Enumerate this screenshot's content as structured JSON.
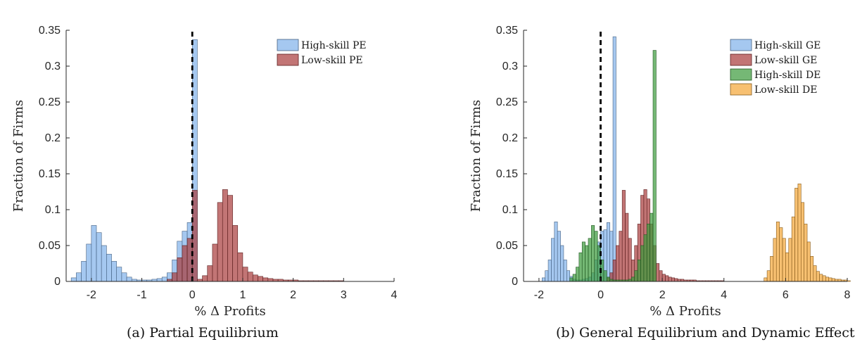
{
  "figure": {
    "captions": [
      "(a) Partial Equilibrium",
      "(b) General Equilibrium and Dynamic Effect"
    ]
  },
  "chart_data": [
    {
      "type": "bar",
      "title": "",
      "xlabel": "% Δ Profits",
      "ylabel": "Fraction of Firms",
      "xlim": [
        -2.5,
        4
      ],
      "ylim": [
        0,
        0.35
      ],
      "xticks": [
        -2,
        -1,
        0,
        1,
        2,
        3,
        4
      ],
      "yticks": [
        0,
        0.05,
        0.1,
        0.15,
        0.2,
        0.25,
        0.3,
        0.35
      ],
      "binwidth": 0.1,
      "grid": false,
      "legend_position": "top-right",
      "reference_line_x": 0,
      "series": [
        {
          "name": "High-skill PE",
          "color": "#7fb0ea",
          "bins": [
            [
              -2.4,
              0.005
            ],
            [
              -2.3,
              0.012
            ],
            [
              -2.2,
              0.028
            ],
            [
              -2.1,
              0.052
            ],
            [
              -2.0,
              0.078
            ],
            [
              -1.9,
              0.068
            ],
            [
              -1.8,
              0.05
            ],
            [
              -1.7,
              0.038
            ],
            [
              -1.6,
              0.028
            ],
            [
              -1.5,
              0.02
            ],
            [
              -1.4,
              0.012
            ],
            [
              -1.3,
              0.006
            ],
            [
              -1.2,
              0.003
            ],
            [
              -1.1,
              0.002
            ],
            [
              -1.0,
              0.002
            ],
            [
              -0.9,
              0.002
            ],
            [
              -0.8,
              0.003
            ],
            [
              -0.7,
              0.004
            ],
            [
              -0.6,
              0.006
            ],
            [
              -0.5,
              0.012
            ],
            [
              -0.4,
              0.03
            ],
            [
              -0.3,
              0.056
            ],
            [
              -0.2,
              0.07
            ],
            [
              -0.1,
              0.082
            ],
            [
              0.0,
              0.337
            ]
          ]
        },
        {
          "name": "Low-skill PE",
          "color": "#a83a3a",
          "bins": [
            [
              -0.5,
              0.003
            ],
            [
              -0.4,
              0.012
            ],
            [
              -0.3,
              0.033
            ],
            [
              -0.2,
              0.05
            ],
            [
              -0.1,
              0.06
            ],
            [
              0.0,
              0.127
            ],
            [
              0.1,
              0.003
            ],
            [
              0.2,
              0.008
            ],
            [
              0.3,
              0.022
            ],
            [
              0.4,
              0.052
            ],
            [
              0.5,
              0.11
            ],
            [
              0.6,
              0.128
            ],
            [
              0.7,
              0.12
            ],
            [
              0.8,
              0.078
            ],
            [
              0.9,
              0.04
            ],
            [
              1.0,
              0.02
            ],
            [
              1.1,
              0.013
            ],
            [
              1.2,
              0.009
            ],
            [
              1.3,
              0.007
            ],
            [
              1.4,
              0.005
            ],
            [
              1.5,
              0.004
            ],
            [
              1.6,
              0.003
            ],
            [
              1.7,
              0.003
            ],
            [
              1.8,
              0.002
            ],
            [
              1.9,
              0.002
            ],
            [
              2.0,
              0.002
            ],
            [
              2.1,
              0.001
            ],
            [
              2.2,
              0.001
            ],
            [
              2.3,
              0.001
            ],
            [
              2.4,
              0.001
            ],
            [
              2.5,
              0.001
            ],
            [
              2.6,
              0.001
            ],
            [
              2.7,
              0.001
            ],
            [
              2.8,
              0.001
            ],
            [
              2.9,
              0.001
            ]
          ]
        }
      ]
    },
    {
      "type": "bar",
      "title": "",
      "xlabel": "% Δ Profits",
      "ylabel": "Fraction of Firms",
      "xlim": [
        -2.5,
        8
      ],
      "ylim": [
        0,
        0.35
      ],
      "xticks": [
        -2,
        0,
        2,
        4,
        6,
        8
      ],
      "yticks": [
        0,
        0.05,
        0.1,
        0.15,
        0.2,
        0.25,
        0.3,
        0.35
      ],
      "binwidth": 0.1,
      "grid": false,
      "legend_position": "top-right",
      "reference_line_x": 0,
      "series": [
        {
          "name": "High-skill GE",
          "color": "#7fb0ea",
          "bins": [
            [
              -1.9,
              0.005
            ],
            [
              -1.8,
              0.015
            ],
            [
              -1.7,
              0.03
            ],
            [
              -1.6,
              0.06
            ],
            [
              -1.5,
              0.083
            ],
            [
              -1.4,
              0.07
            ],
            [
              -1.3,
              0.05
            ],
            [
              -1.2,
              0.03
            ],
            [
              -1.1,
              0.015
            ],
            [
              -1.0,
              0.007
            ],
            [
              -0.9,
              0.003
            ],
            [
              -0.8,
              0.002
            ],
            [
              -0.7,
              0.002
            ],
            [
              -0.6,
              0.003
            ],
            [
              -0.5,
              0.004
            ],
            [
              -0.4,
              0.006
            ],
            [
              -0.3,
              0.012
            ],
            [
              -0.2,
              0.03
            ],
            [
              -0.1,
              0.055
            ],
            [
              0.0,
              0.07
            ],
            [
              0.1,
              0.072
            ],
            [
              0.2,
              0.082
            ],
            [
              0.3,
              0.07
            ],
            [
              0.4,
              0.341
            ]
          ]
        },
        {
          "name": "Low-skill GE",
          "color": "#a83a3a",
          "bins": [
            [
              0.2,
              0.005
            ],
            [
              0.3,
              0.012
            ],
            [
              0.4,
              0.03
            ],
            [
              0.5,
              0.05
            ],
            [
              0.6,
              0.07
            ],
            [
              0.7,
              0.127
            ],
            [
              0.8,
              0.095
            ],
            [
              0.9,
              0.06
            ],
            [
              1.0,
              0.03
            ],
            [
              1.1,
              0.05
            ],
            [
              1.2,
              0.08
            ],
            [
              1.3,
              0.12
            ],
            [
              1.4,
              0.128
            ],
            [
              1.5,
              0.115
            ],
            [
              1.6,
              0.08
            ],
            [
              1.7,
              0.05
            ],
            [
              1.8,
              0.025
            ],
            [
              1.9,
              0.015
            ],
            [
              2.0,
              0.01
            ],
            [
              2.1,
              0.008
            ],
            [
              2.2,
              0.006
            ],
            [
              2.3,
              0.005
            ],
            [
              2.4,
              0.004
            ],
            [
              2.5,
              0.003
            ],
            [
              2.6,
              0.003
            ],
            [
              2.7,
              0.002
            ],
            [
              2.8,
              0.002
            ],
            [
              2.9,
              0.002
            ],
            [
              3.0,
              0.002
            ],
            [
              3.1,
              0.001
            ],
            [
              3.2,
              0.001
            ],
            [
              3.3,
              0.001
            ],
            [
              3.4,
              0.001
            ],
            [
              3.5,
              0.001
            ],
            [
              3.6,
              0.001
            ],
            [
              3.7,
              0.001
            ],
            [
              3.8,
              0.001
            ],
            [
              3.9,
              0.001
            ]
          ]
        },
        {
          "name": "High-skill DE",
          "color": "#3a9a3a",
          "bins": [
            [
              -1.0,
              0.005
            ],
            [
              -0.9,
              0.01
            ],
            [
              -0.8,
              0.02
            ],
            [
              -0.7,
              0.04
            ],
            [
              -0.6,
              0.055
            ],
            [
              -0.5,
              0.05
            ],
            [
              -0.4,
              0.06
            ],
            [
              -0.3,
              0.078
            ],
            [
              -0.2,
              0.07
            ],
            [
              -0.1,
              0.05
            ],
            [
              0.0,
              0.03
            ],
            [
              0.1,
              0.015
            ],
            [
              0.2,
              0.006
            ],
            [
              0.3,
              0.003
            ],
            [
              0.4,
              0.002
            ],
            [
              0.5,
              0.002
            ],
            [
              0.6,
              0.002
            ],
            [
              0.7,
              0.002
            ],
            [
              0.8,
              0.002
            ],
            [
              0.9,
              0.003
            ],
            [
              1.0,
              0.006
            ],
            [
              1.1,
              0.015
            ],
            [
              1.2,
              0.03
            ],
            [
              1.3,
              0.05
            ],
            [
              1.4,
              0.065
            ],
            [
              1.5,
              0.08
            ],
            [
              1.6,
              0.095
            ],
            [
              1.7,
              0.322
            ]
          ]
        },
        {
          "name": "Low-skill DE",
          "color": "#f4a535",
          "bins": [
            [
              5.3,
              0.005
            ],
            [
              5.4,
              0.015
            ],
            [
              5.5,
              0.035
            ],
            [
              5.6,
              0.06
            ],
            [
              5.7,
              0.083
            ],
            [
              5.8,
              0.075
            ],
            [
              5.9,
              0.06
            ],
            [
              6.0,
              0.04
            ],
            [
              6.1,
              0.06
            ],
            [
              6.2,
              0.09
            ],
            [
              6.3,
              0.13
            ],
            [
              6.4,
              0.136
            ],
            [
              6.5,
              0.11
            ],
            [
              6.6,
              0.08
            ],
            [
              6.7,
              0.055
            ],
            [
              6.8,
              0.035
            ],
            [
              6.9,
              0.022
            ],
            [
              7.0,
              0.014
            ],
            [
              7.1,
              0.01
            ],
            [
              7.2,
              0.008
            ],
            [
              7.3,
              0.006
            ],
            [
              7.4,
              0.005
            ],
            [
              7.5,
              0.004
            ],
            [
              7.6,
              0.003
            ],
            [
              7.7,
              0.003
            ],
            [
              7.8,
              0.002
            ],
            [
              7.9,
              0.002
            ],
            [
              8.0,
              0.001
            ]
          ]
        }
      ]
    }
  ]
}
